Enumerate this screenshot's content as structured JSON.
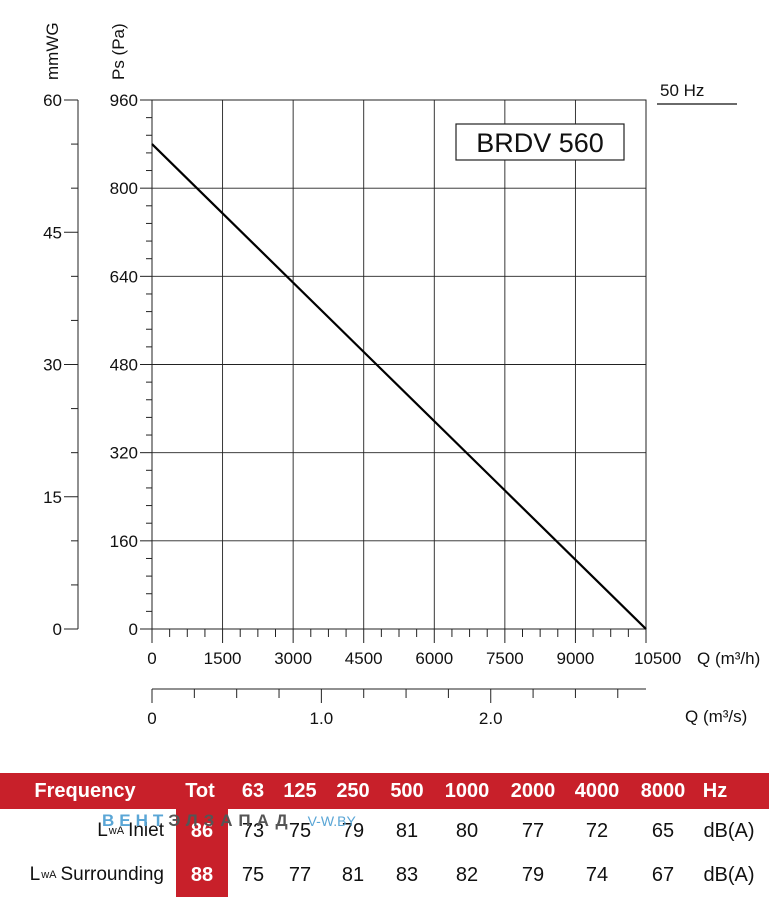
{
  "chart_data": {
    "type": "line",
    "title": "BRDV 560",
    "frequency_label": "50 Hz",
    "ylabel_left": "mmWG",
    "ylabel_right": "Ps (Pa)",
    "xlabel": "Q (m³/h)",
    "xlabel_secondary": "Q (m³/s)",
    "xlim": [
      0,
      10500
    ],
    "ylim": [
      0,
      960
    ],
    "x_ticks": [
      0,
      1500,
      3000,
      4500,
      6000,
      7500,
      9000,
      10500
    ],
    "y_ticks": [
      0,
      160,
      320,
      480,
      640,
      800,
      960
    ],
    "y_ticks_mmwg": [
      0,
      15,
      30,
      45,
      60
    ],
    "secondary_x_ticks": [
      0,
      1.0,
      2.0
    ],
    "secondary_x_tick_labels": [
      "0",
      "1.0",
      "2.0"
    ],
    "grid": true,
    "series": [
      {
        "name": "",
        "x": [
          0,
          10500
        ],
        "y": [
          880,
          0
        ]
      }
    ]
  },
  "sound_table": {
    "header": {
      "label": "Frequency",
      "tot": "Tot",
      "bands": [
        "63",
        "125",
        "250",
        "500",
        "1000",
        "2000",
        "4000",
        "8000"
      ],
      "unit": "Hz"
    },
    "rows": [
      {
        "label_main": "L",
        "label_sub": "wA",
        "label_rest": "Inlet",
        "tot": "86",
        "values": [
          "73",
          "75",
          "79",
          "81",
          "80",
          "77",
          "72",
          "65"
        ],
        "unit": "dB(A)"
      },
      {
        "label_main": "L",
        "label_sub": "wA",
        "label_rest": "Surrounding",
        "tot": "88",
        "values": [
          "75",
          "77",
          "81",
          "83",
          "82",
          "79",
          "74",
          "67"
        ],
        "unit": "dB(A)"
      }
    ]
  },
  "watermark": {
    "part1": "ВЕНТ",
    "part2": "ЭЛЗАПАД",
    "part3": "V-W.BY"
  },
  "colors": {
    "header_red": "#c8202a",
    "curve": "#000000",
    "grid": "#222222"
  }
}
